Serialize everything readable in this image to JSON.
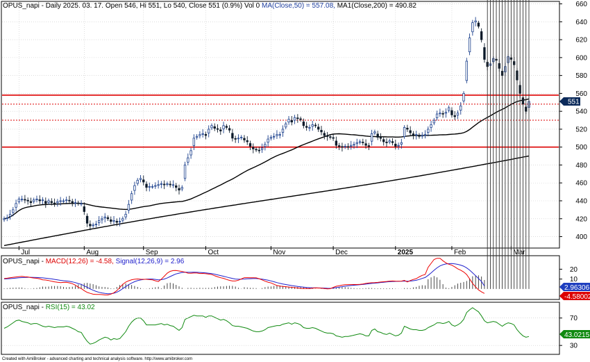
{
  "header": {
    "price_prefix": "OPUS_napi - Daily 2025. 03. 17. Open 546, Hi 551, Lo 540, Close 551 (0.9%) Vol 0",
    "ma50_label": "MA(Close,50) = 557.08,",
    "ma200_label": "MA1(Close,200) = 490.82",
    "macd_prefix": "OPUS_napi -",
    "macd_label": "MACD(12,26) = -4.58,",
    "signal_label": "Signal(12,26,9) = 2.96",
    "rsi_prefix": "OPUS_napi -",
    "rsi_label": "RSI(15) = 43.02"
  },
  "footer": "Created with AmiBroker - advanced charting and technical analysis software. http://www.amibroker.com",
  "colors": {
    "up": "#1a3f8c",
    "down": "#0d1b2a",
    "ma": "#000000",
    "hline": "#dd0000",
    "macd": "#ee0000",
    "signal": "#2020cc",
    "rsi": "#108a10",
    "badge_price": "#0b2a5a",
    "badge_signal": "#1f3fbf",
    "badge_macd": "#dd0000",
    "badge_rsi": "#108a10"
  },
  "chart_data": [
    {
      "type": "candlestick",
      "y_ticks": [
        400,
        420,
        440,
        460,
        480,
        500,
        520,
        540,
        560,
        580,
        600,
        620,
        640,
        660
      ],
      "ylim": [
        388,
        662
      ],
      "month_labels": [
        "Jul",
        "Aug",
        "Sep",
        "Oct",
        "Nov",
        "Dec",
        "2025",
        "Feb",
        "Mar"
      ],
      "month_start_index": [
        5,
        27,
        47,
        68,
        90,
        111,
        132,
        151,
        171
      ],
      "last_price_badge": "551",
      "horizontal_lines": [
        {
          "value": 558,
          "style": "solid"
        },
        {
          "value": 548,
          "style": "dotted"
        },
        {
          "value": 530,
          "style": "dotted"
        },
        {
          "value": 500,
          "style": "solid"
        }
      ],
      "close": [
        420,
        421,
        425,
        430,
        437,
        442,
        442,
        441,
        440,
        438,
        441,
        442,
        440,
        441,
        437,
        440,
        438,
        437,
        439,
        440,
        440,
        441,
        440,
        438,
        438,
        437,
        437,
        428,
        415,
        412,
        413,
        414,
        418,
        420,
        422,
        420,
        417,
        418,
        416,
        417,
        420,
        425,
        436,
        448,
        457,
        463,
        465,
        461,
        455,
        456,
        456,
        457,
        458,
        459,
        458,
        459,
        458,
        458,
        455,
        452,
        455,
        480,
        488,
        496,
        510,
        512,
        514,
        515,
        513,
        520,
        524,
        521,
        520,
        518,
        524,
        522,
        519,
        510,
        509,
        510,
        511,
        508,
        506,
        501,
        498,
        497,
        496,
        499,
        503,
        509,
        511,
        512,
        514,
        514,
        520,
        526,
        531,
        528,
        533,
        532,
        531,
        524,
        522,
        522,
        525,
        524,
        520,
        517,
        513,
        512,
        511,
        510,
        502,
        501,
        500,
        501,
        500,
        502,
        503,
        505,
        506,
        505,
        502,
        501,
        515,
        517,
        511,
        510,
        506,
        505,
        507,
        505,
        501,
        502,
        505,
        522,
        520,
        516,
        513,
        514,
        512,
        513,
        514,
        520,
        525,
        530,
        537,
        538,
        537,
        539,
        544,
        536,
        534,
        538,
        546,
        560,
        596,
        622,
        639,
        641,
        635,
        620,
        598,
        590,
        593,
        599,
        597,
        588,
        580,
        590,
        601,
        598,
        592,
        575,
        560,
        548,
        540,
        551
      ],
      "macd": [
        10.5,
        10.86,
        11.35,
        11.77,
        12.14,
        12.47,
        12.72,
        12.26,
        12.13,
        11.51,
        11.08,
        10.83,
        10.13,
        9.22,
        9.04,
        8.53,
        7.74,
        7.23,
        6.76,
        6.44,
        6.62,
        6.72,
        6.12,
        5.28,
        3.86,
        1.7,
        0.39,
        -1.73,
        -3.49,
        -4.51,
        -5.38,
        -5.65,
        -5.57,
        -5.78,
        -6.14,
        -6.09,
        -5.31,
        -3.92,
        -1.73,
        1.52,
        4.54,
        6.92,
        8.27,
        9.34,
        9.82,
        10.07,
        9.81,
        9.71,
        9.72,
        9.43,
        9.15,
        8.26,
        7.48,
        9.86,
        12.86,
        15.94,
        17.86,
        18.63,
        18.66,
        18.19,
        17.71,
        16.99,
        16.03,
        15.86,
        16.18,
        16.13,
        15.67,
        15.7,
        15.45,
        15.04,
        14.62,
        13.36,
        12.26,
        11.34,
        10.7,
        9.6,
        8.65,
        8.07,
        8.05,
        8.85,
        10.09,
        11.44,
        11.44,
        11.27,
        11.34,
        11.19,
        10.36,
        9.2,
        7.85,
        6.84,
        6.06,
        4.76,
        3.44,
        2.86,
        2.51,
        2.24,
        1.9,
        1.6,
        1.27,
        0.93,
        0.55,
        0.44,
        0.33,
        0.26,
        0.68,
        0.97,
        0.95,
        0.74,
        0.45,
        0.1,
        0.24,
        1.57,
        2.66,
        3.21,
        3.84,
        4.32,
        4.4,
        4.37,
        4.43,
        4.47,
        4.64,
        5.03,
        5.56,
        6.09,
        6.3,
        6.38,
        6.61,
        6.99,
        7.24,
        7.52,
        7.9,
        8.07,
        7.91,
        7.82,
        7.87,
        8.67,
        7.06,
        8.56,
        9.59,
        10.43,
        12.17,
        13.76,
        14.57,
        21.91,
        25.96,
        29.81,
        31.13,
        31.08,
        28.58,
        26.41,
        25.02,
        24.02,
        22.37,
        20.37,
        18.94,
        17.21,
        14.6,
        10.13,
        5.65,
        2.13,
        -0.98,
        -3.02,
        -4.58
      ],
      "signal": [
        10.06,
        10.22,
        10.45,
        10.71,
        10.99,
        11.26,
        11.52,
        11.66,
        11.8,
        11.78,
        11.72,
        11.6,
        11.45,
        11.19,
        10.87,
        10.53,
        10.14,
        9.68,
        9.18,
        8.66,
        8.32,
        8.08,
        7.69,
        7.14,
        6.43,
        5.45,
        4.59,
        3.12,
        1.65,
        0.04,
        -1.35,
        -2.52,
        -3.44,
        -4.07,
        -4.51,
        -4.85,
        -4.79,
        -4.34,
        -3.36,
        -1.76,
        0.3,
        2.28,
        4.34,
        6.01,
        7.35,
        8.39,
        9.1,
        9.56,
        9.88,
        10.04,
        10.04,
        9.68,
        9.26,
        9.37,
        10.02,
        11.11,
        12.59,
        14.0,
        15.26,
        16.01,
        16.74,
        16.96,
        16.89,
        16.83,
        16.9,
        16.86,
        16.69,
        16.52,
        16.3,
        15.96,
        15.6,
        14.93,
        14.22,
        13.51,
        12.84,
        12.06,
        11.32,
        10.65,
        10.05,
        9.81,
        9.86,
        10.04,
        10.25,
        10.37,
        10.48,
        10.51,
        10.29,
        9.91,
        9.38,
        8.79,
        8.11,
        7.29,
        6.39,
        5.68,
        5.04,
        4.46,
        3.93,
        3.42,
        2.95,
        2.54,
        2.15,
        1.81,
        1.51,
        1.25,
        1.13,
        1.07,
        1.01,
        0.93,
        0.83,
        0.64,
        0.56,
        0.89,
        1.33,
        1.81,
        2.29,
        2.76,
        3.14,
        3.49,
        3.78,
        4.03,
        4.27,
        4.53,
        4.87,
        5.23,
        5.55,
        5.85,
        6.16,
        6.48,
        6.79,
        7.07,
        7.34,
        7.54,
        7.65,
        7.71,
        7.76,
        7.99,
        7.79,
        7.98,
        8.3,
        8.74,
        9.59,
        10.62,
        11.6,
        13.76,
        16.21,
        18.93,
        21.38,
        23.37,
        24.56,
        25.29,
        25.61,
        25.71,
        25.46,
        24.89,
        24.13,
        23.03,
        21.33,
        19.09,
        16.36,
        13.48,
        10.48,
        7.48,
        2.96
      ],
      "rsi": [
        55,
        57,
        60,
        63,
        66,
        67,
        65,
        64,
        63,
        61,
        62,
        62,
        60,
        58,
        57,
        58,
        57,
        56,
        57,
        57,
        57,
        58,
        57,
        55,
        53,
        50,
        49,
        42,
        36,
        32,
        33,
        35,
        38,
        40,
        42,
        41,
        38,
        40,
        39,
        40,
        45,
        50,
        58,
        64,
        68,
        70,
        70,
        66,
        60,
        60,
        60,
        60,
        61,
        62,
        60,
        61,
        59,
        58,
        55,
        52,
        56,
        68,
        70,
        72,
        74,
        73,
        73,
        73,
        71,
        73,
        73,
        71,
        69,
        67,
        68,
        66,
        63,
        59,
        58,
        58,
        57,
        56,
        55,
        53,
        51,
        50,
        50,
        51,
        53,
        56,
        57,
        58,
        59,
        59,
        61,
        62,
        63,
        61,
        63,
        62,
        60,
        56,
        55,
        55,
        56,
        55,
        53,
        51,
        49,
        48,
        48,
        47,
        44,
        43,
        42,
        43,
        43,
        44,
        45,
        46,
        47,
        46,
        44,
        44,
        52,
        54,
        50,
        49,
        47,
        46,
        48,
        46,
        44,
        45,
        48,
        58,
        56,
        54,
        53,
        53,
        52,
        52,
        53,
        56,
        58,
        60,
        63,
        63,
        62,
        63,
        65,
        60,
        58,
        60,
        63,
        68,
        78,
        82,
        85,
        82,
        79,
        73,
        66,
        63,
        64,
        65,
        64,
        61,
        58,
        61,
        63,
        62,
        60,
        53,
        48,
        44,
        42,
        43
      ]
    }
  ],
  "panels": {
    "macd": {
      "y_ticks": [
        10,
        20
      ],
      "ylim": [
        -10,
        33
      ],
      "signal_badge": "2.96306",
      "macd_badge": "-4.58002"
    },
    "rsi": {
      "y_ticks": [
        30,
        70
      ],
      "ylim": [
        18,
        92
      ],
      "rsi_badge": "43.0215"
    }
  }
}
